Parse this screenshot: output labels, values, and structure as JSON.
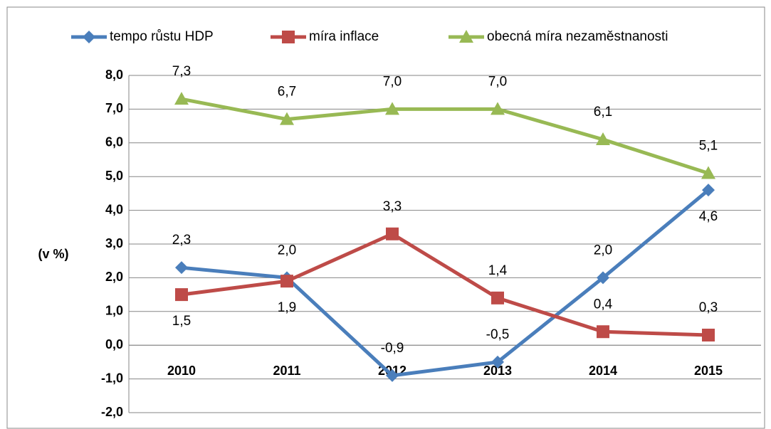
{
  "chart_data": {
    "type": "line",
    "y_label": "(v %)",
    "categories": [
      "2010",
      "2011",
      "2012",
      "2013",
      "2014",
      "2015"
    ],
    "series": [
      {
        "name": "tempo růstu HDP",
        "color": "#4a7ebb",
        "marker": "diamond",
        "values": [
          2.3,
          2.0,
          -0.9,
          -0.5,
          2.0,
          4.6
        ],
        "value_labels": [
          "2,3",
          "2,0",
          "-0,9",
          "-0,5",
          "2,0",
          "4,6"
        ]
      },
      {
        "name": "míra inflace",
        "color": "#be4b48",
        "marker": "square",
        "values": [
          1.5,
          1.9,
          3.3,
          1.4,
          0.4,
          0.3
        ],
        "value_labels": [
          "1,5",
          "1,9",
          "3,3",
          "1,4",
          "0,4",
          "0,3"
        ]
      },
      {
        "name": "obecná míra nezaměstnanosti",
        "color": "#98b954",
        "marker": "triangle",
        "values": [
          7.3,
          6.7,
          7.0,
          7.0,
          6.1,
          5.1
        ],
        "value_labels": [
          "7,3",
          "6,7",
          "7,0",
          "7,0",
          "6,1",
          "5,1"
        ]
      }
    ],
    "ylim": [
      -2,
      8
    ],
    "yticks": [
      {
        "value": -2,
        "label": "-2,0"
      },
      {
        "value": -1,
        "label": "-1,0"
      },
      {
        "value": 0,
        "label": "0,0"
      },
      {
        "value": 1,
        "label": "1,0"
      },
      {
        "value": 2,
        "label": "2,0"
      },
      {
        "value": 3,
        "label": "3,0"
      },
      {
        "value": 4,
        "label": "4,0"
      },
      {
        "value": 5,
        "label": "5,0"
      },
      {
        "value": 6,
        "label": "6,0"
      },
      {
        "value": 7,
        "label": "7,0"
      },
      {
        "value": 8,
        "label": "8,0"
      }
    ],
    "grid": true,
    "legend": "top"
  }
}
